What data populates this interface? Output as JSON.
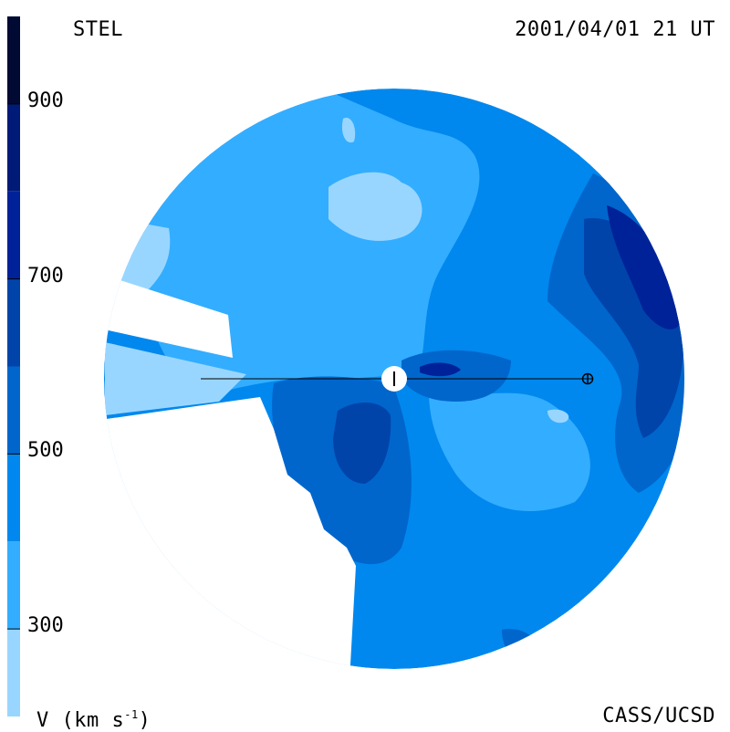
{
  "header": {
    "source": "STEL",
    "timestamp": "2001/04/01 21 UT"
  },
  "footer": {
    "credit": "CASS/UCSD",
    "units_prefix": "V (km s",
    "units_exp": "-1",
    "units_suffix": ")"
  },
  "colorbar": {
    "min": 200,
    "max": 1000,
    "ticks": [
      {
        "label": "900",
        "value": 900
      },
      {
        "label": "700",
        "value": 700
      },
      {
        "label": "500",
        "value": 500
      },
      {
        "label": "300",
        "value": 300
      }
    ],
    "bands": [
      {
        "from": 200,
        "to": 300,
        "color": "#99d6ff"
      },
      {
        "from": 300,
        "to": 400,
        "color": "#33adff"
      },
      {
        "from": 400,
        "to": 500,
        "color": "#0088ee"
      },
      {
        "from": 500,
        "to": 600,
        "color": "#0066cc"
      },
      {
        "from": 600,
        "to": 700,
        "color": "#0044aa"
      },
      {
        "from": 700,
        "to": 800,
        "color": "#002299"
      },
      {
        "from": 800,
        "to": 900,
        "color": "#001a77"
      },
      {
        "from": 900,
        "to": 1000,
        "color": "#000a33"
      }
    ]
  },
  "map": {
    "markers": [
      "sun-marker",
      "earth-marker"
    ]
  }
}
